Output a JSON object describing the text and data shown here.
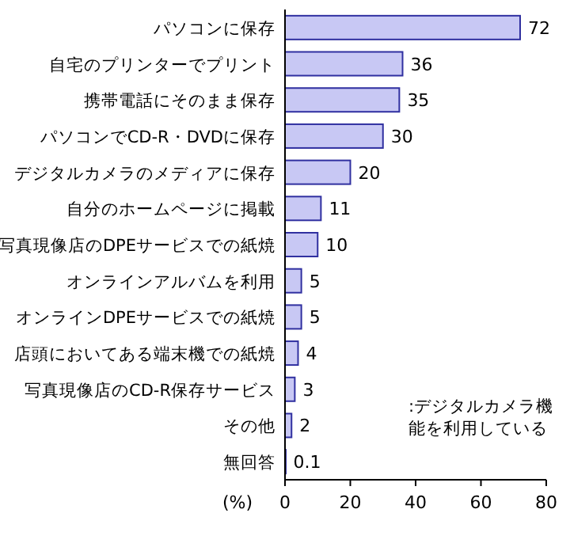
{
  "chart_data": {
    "type": "bar",
    "orientation": "horizontal",
    "xlabel": "(%)",
    "categories": [
      "パソコンに保存",
      "自宅のプリンターでプリント",
      "携帯電話にそのまま保存",
      "パソコンでCD-R・DVDに保存",
      "デジタルカメラのメディアに保存",
      "自分のホームページに掲載",
      "写真現像店のDPEサービスでの紙焼",
      "オンラインアルバムを利用",
      "オンラインDPEサービスでの紙焼",
      "店頭においてある端末機での紙焼",
      "写真現像店のCD-R保存サービス",
      "その他",
      "無回答"
    ],
    "values": [
      72,
      36,
      35,
      30,
      20,
      11,
      10,
      5,
      5,
      4,
      3,
      2,
      0.1
    ],
    "color": "#c8c8f4",
    "data_labels": true,
    "xlim": [
      0,
      80
    ],
    "xticks": [
      0,
      20,
      40,
      60,
      80
    ],
    "annotations": [
      ":デジタルカメラ機能を利用している"
    ]
  }
}
